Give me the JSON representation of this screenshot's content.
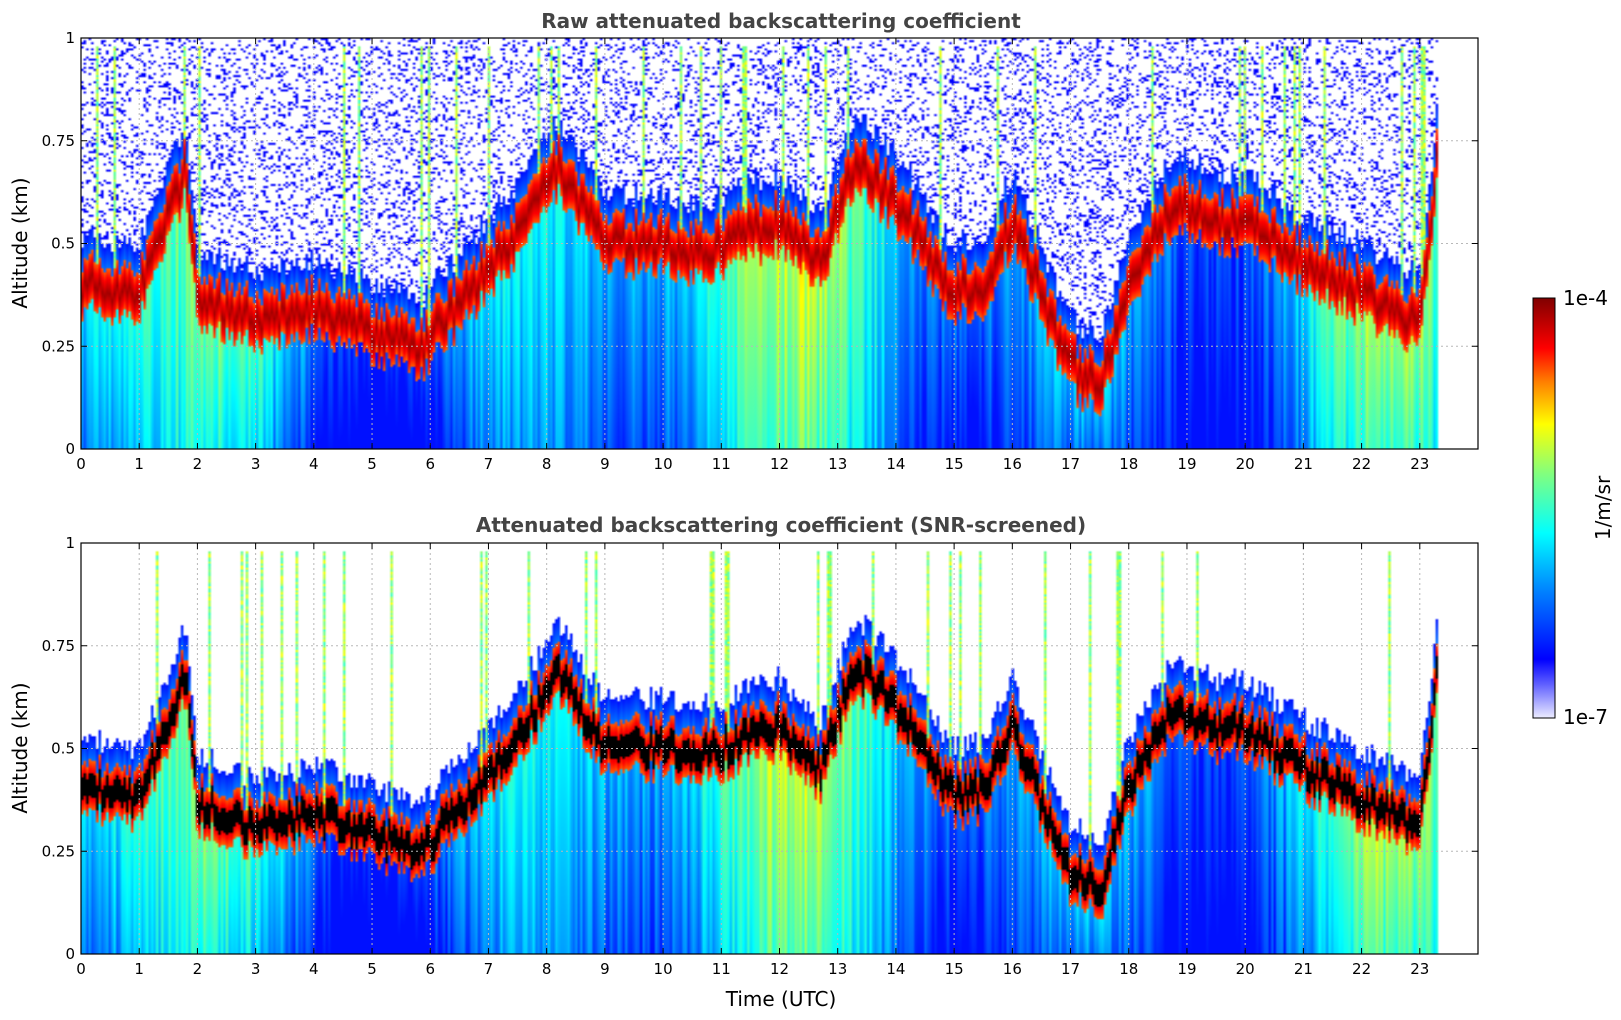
{
  "colors": {
    "colormap_low": "#ececff",
    "colormap_blue": "#0000ff",
    "colormap_cyan": "#00ffff",
    "colormap_yellow": "#ffff00",
    "colormap_red": "#ff0000",
    "colormap_high": "#800000",
    "saturated_screened": "#000000",
    "title": "#444444"
  },
  "chart_data": [
    {
      "type": "heatmap",
      "title": "Raw attenuated backscattering coefficient",
      "xlabel": "",
      "ylabel": "Altitude (km)",
      "xlim": [
        0,
        24
      ],
      "ylim": [
        0,
        1
      ],
      "xticks": [
        "0",
        "1",
        "2",
        "3",
        "4",
        "5",
        "6",
        "7",
        "8",
        "9",
        "10",
        "11",
        "12",
        "13",
        "14",
        "15",
        "16",
        "17",
        "18",
        "19",
        "20",
        "21",
        "22",
        "23"
      ],
      "yticks": [
        "0",
        "0.25",
        "0.5",
        "0.75",
        "1"
      ],
      "grid": true,
      "data_end_hour": 23.3,
      "boundary_layer_top_km": {
        "hours": [
          0,
          1,
          1.8,
          2,
          3,
          4,
          5,
          5.8,
          6.5,
          7.5,
          8.2,
          9,
          10,
          10.5,
          11,
          12,
          12.7,
          13.3,
          14,
          15,
          15.5,
          16,
          17,
          17.5,
          18,
          18.8,
          19.5,
          20,
          21,
          22,
          23,
          23.3
        ],
        "km": [
          0.4,
          0.38,
          0.68,
          0.37,
          0.31,
          0.34,
          0.29,
          0.24,
          0.35,
          0.52,
          0.68,
          0.5,
          0.5,
          0.47,
          0.5,
          0.55,
          0.45,
          0.7,
          0.6,
          0.38,
          0.4,
          0.55,
          0.2,
          0.15,
          0.4,
          0.6,
          0.55,
          0.55,
          0.45,
          0.38,
          0.3,
          0.7
        ]
      }
    },
    {
      "type": "heatmap",
      "title": "Attenuated backscattering coefficient (SNR-screened)",
      "xlabel": "Time (UTC)",
      "ylabel": "Altitude (km)",
      "xlim": [
        0,
        24
      ],
      "ylim": [
        0,
        1
      ],
      "xticks": [
        "0",
        "1",
        "2",
        "3",
        "4",
        "5",
        "6",
        "7",
        "8",
        "9",
        "10",
        "11",
        "12",
        "13",
        "14",
        "15",
        "16",
        "17",
        "18",
        "19",
        "20",
        "21",
        "22",
        "23"
      ],
      "yticks": [
        "0",
        "0.25",
        "0.5",
        "0.75",
        "1"
      ],
      "grid": true,
      "data_end_hour": 23.3,
      "saturated_color": "#000000"
    }
  ],
  "colorbar": {
    "label": "1/m/sr",
    "max_label": "1e-4",
    "min_label": "1e-7",
    "range": [
      1e-07,
      0.0001
    ],
    "scale": "log"
  }
}
